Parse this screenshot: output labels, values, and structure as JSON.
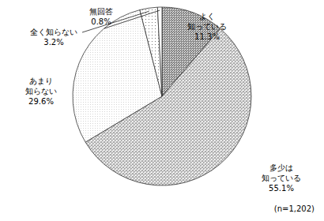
{
  "chart_data": {
    "type": "pie",
    "categories": [
      "よく\n知っている",
      "多少は\n知っている",
      "あまり\n知らない",
      "全く知らない",
      "無回答"
    ],
    "values": [
      11.3,
      55.1,
      29.6,
      3.2,
      0.8
    ],
    "value_labels": [
      "11.3%",
      "55.1%",
      "29.6%",
      "3.2%",
      "0.8%"
    ],
    "colors": [
      "#8a8a8a",
      "#a8a8a8",
      "#d4d4d4",
      "#eeeeee",
      "#ffffff"
    ],
    "data_labels": true,
    "annotations": [
      "(n=1,202)"
    ]
  }
}
